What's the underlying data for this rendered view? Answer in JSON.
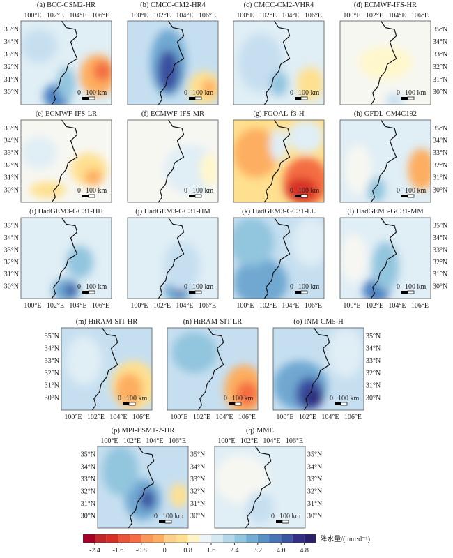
{
  "panels": [
    {
      "label": "(a) BCC-CSM2-HR"
    },
    {
      "label": "(b) CMCC-CM2-HR4"
    },
    {
      "label": "(c) CMCC-CM2-VHR4"
    },
    {
      "label": "(d) ECMWF-IFS-HR"
    },
    {
      "label": "(e) ECMWF-IFS-LR"
    },
    {
      "label": "(f) ECMWF-IFS-MR"
    },
    {
      "label": "(g) FGOAL-f3-H"
    },
    {
      "label": "(h) GFDL-CM4C192"
    },
    {
      "label": "(i) HadGEM3-GC31-HH"
    },
    {
      "label": "(j) HadGEM3-GC31-HM"
    },
    {
      "label": "(k) HadGEM3-GC31-LL"
    },
    {
      "label": "(l) HadGEM3-GC31-MM"
    },
    {
      "label": "(m) HiRAM-SIT-HR"
    },
    {
      "label": "(n) HiRAM-SIT-LR"
    },
    {
      "label": "(o) INM-CM5-H"
    },
    {
      "label": "(p) MPI-ESM1-2-HR"
    },
    {
      "label": "(q) MME"
    }
  ],
  "lon_labels": [
    "100°E",
    "102°E",
    "104°E",
    "106°E"
  ],
  "lat_labels": [
    "35°N",
    "34°N",
    "33°N",
    "32°N",
    "31°N",
    "30°N"
  ],
  "scale_bar": {
    "zero": "0",
    "length": "100 km"
  },
  "colorbar": {
    "ticks": [
      "-2.4",
      "-1.6",
      "-0.8",
      "0",
      "0.8",
      "1.6",
      "2.4",
      "3.2",
      "4.0",
      "4.8"
    ],
    "label": "降水量/(mm·d⁻¹)"
  }
}
